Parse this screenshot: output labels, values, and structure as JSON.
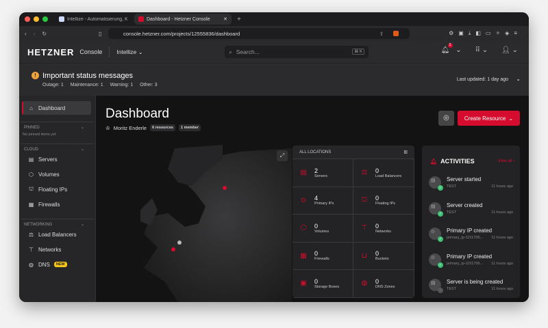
{
  "browser": {
    "tabs": [
      {
        "label": "Intellize - Automatisierung, KI & Da",
        "active": false
      },
      {
        "label": "Dashboard - Hetzner Console",
        "active": true
      }
    ],
    "url": "console.hetzner.com/projects/12555836/dashboard"
  },
  "header": {
    "logo": "HETZNER",
    "product": "Console",
    "project": "Intellize",
    "search_placeholder": "Search...",
    "search_shortcut": "⌘ K",
    "notification_count": "2"
  },
  "status": {
    "title": "Important status messages",
    "counts": [
      "Outage: 1",
      "Maintenance: 1",
      "Warning: 1",
      "Other: 3"
    ],
    "last_updated": "Last updated: 1 day ago"
  },
  "sidebar": {
    "dashboard": "Dashboard",
    "pinned": "PINNED",
    "pinned_empty": "No pinned items yet",
    "cloud": "CLOUD",
    "cloud_items": [
      "Servers",
      "Volumes",
      "Floating IPs",
      "Firewalls"
    ],
    "networking": "NETWORKING",
    "networking_items": [
      "Load Balancers",
      "Networks",
      "DNS"
    ],
    "new_badge": "NEW"
  },
  "main": {
    "title": "Dashboard",
    "owner": "Moritz Enderle",
    "resources": "6 resources",
    "members": "1 member",
    "create_label": "Create Resource"
  },
  "locations": {
    "header": "ALL LOCATIONS",
    "items": [
      {
        "count": "2",
        "label": "Servers",
        "icon": "server"
      },
      {
        "count": "0",
        "label": "Load Balancers",
        "icon": "load-balancer"
      },
      {
        "count": "4",
        "label": "Primary IPs",
        "icon": "pin"
      },
      {
        "count": "0",
        "label": "Floating IPs",
        "icon": "floating-ip"
      },
      {
        "count": "0",
        "label": "Volumes",
        "icon": "cube"
      },
      {
        "count": "0",
        "label": "Networks",
        "icon": "network"
      },
      {
        "count": "0",
        "label": "Firewalls",
        "icon": "firewall"
      },
      {
        "count": "0",
        "label": "Buckets",
        "icon": "bucket"
      },
      {
        "count": "0",
        "label": "Storage Boxes",
        "icon": "storage-box"
      },
      {
        "count": "0",
        "label": "DNS Zones",
        "icon": "globe"
      }
    ]
  },
  "activities": {
    "title": "ACTIVITIES",
    "view_all": "View all",
    "items": [
      {
        "title": "Server started",
        "sub": "TEST",
        "time": "11 hours ago",
        "done": true
      },
      {
        "title": "Server created",
        "sub": "TEST",
        "time": "11 hours ago",
        "done": true
      },
      {
        "title": "Primary IP created",
        "sub": "primary_ip-1151706...",
        "time": "11 hours ago",
        "done": true
      },
      {
        "title": "Primary IP created",
        "sub": "primary_ip-1151706...",
        "time": "11 hours ago",
        "done": true
      },
      {
        "title": "Server is being created",
        "sub": "TEST",
        "time": "11 hours ago",
        "done": false
      }
    ]
  },
  "colors": {
    "accent": "#d50c2d",
    "warning": "#f0a43a",
    "new_badge": "#f5c518",
    "success": "#3fc173"
  }
}
